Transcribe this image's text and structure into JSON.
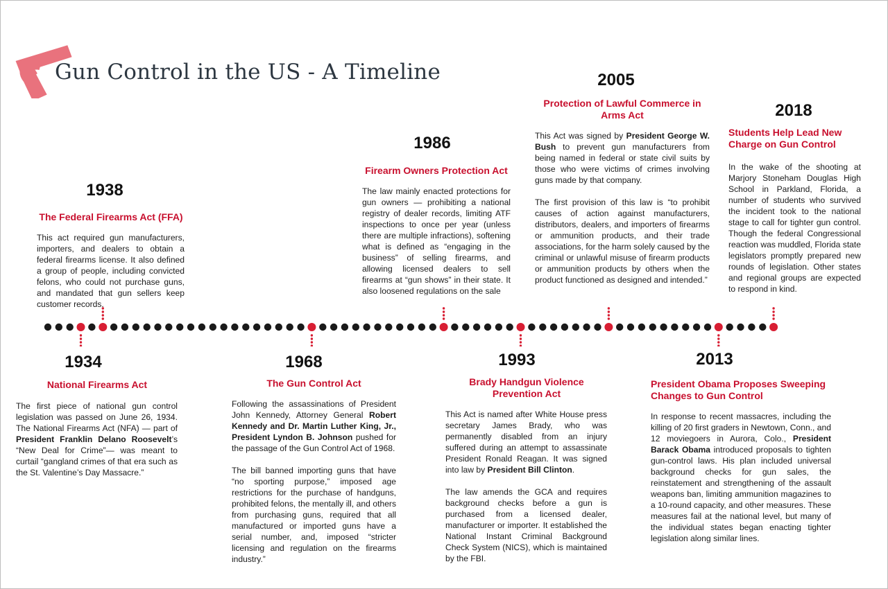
{
  "title": "Gun Control in the US - A Timeline",
  "icons": {
    "logo": "pistol-icon",
    "logo_color": "#e9727d"
  },
  "colors": {
    "accent": "#c8102e",
    "dot": "#1a1a1a",
    "marker": "#d81e33"
  },
  "events": [
    {
      "year": "1934",
      "heading": "National Firearms Act",
      "paragraphs": [
        [
          {
            "t": "The first piece of national gun control legislation was passed on June 26, 1934. The National Firearms Act (NFA) — part of "
          },
          {
            "t": "President Franklin Delano Roosevelt",
            "b": true
          },
          {
            "t": "’s “New Deal for Crime”— was meant to curtail “gangland crimes of that era such as the St. Valentine’s Day Massacre.”"
          }
        ]
      ]
    },
    {
      "year": "1938",
      "heading": "The Federal Firearms Act (FFA)",
      "paragraphs": [
        [
          {
            "t": "This act required gun manufacturers, importers, and dealers to obtain a federal firearms license. It also defined a group of people, including convicted felons, who could not purchase guns, and mandated that gun sellers keep customer records."
          }
        ]
      ]
    },
    {
      "year": "1968",
      "heading": "The Gun Control Act",
      "paragraphs": [
        [
          {
            "t": "Following the assassinations of President John Kennedy, Attorney General "
          },
          {
            "t": "Robert Kennedy and Dr. Martin Luther King, Jr., President Lyndon B. Johnson",
            "b": true
          },
          {
            "t": " pushed for the passage of the Gun Control Act of 1968."
          }
        ],
        [
          {
            "t": "The bill banned importing guns that have “no sporting purpose,” imposed age restrictions for the purchase of handguns, prohibited felons, the mentally ill, and others from purchasing guns, required that all manufactured or imported guns have a serial number, and, imposed “stricter licensing and regulation on the firearms industry.”"
          }
        ]
      ]
    },
    {
      "year": "1986",
      "heading": "Firearm Owners Protection Act",
      "paragraphs": [
        [
          {
            "t": "The law mainly enacted protections for gun owners — prohibiting a national registry of dealer records, limiting ATF inspections to once per year (unless there are multiple infractions), softening what is defined as “engaging in the business” of selling firearms, and allowing licensed dealers to sell firearms at “gun shows” in their state. It also loosened regulations on the sale"
          }
        ]
      ]
    },
    {
      "year": "1993",
      "heading": "Brady Handgun Violence Prevention Act",
      "paragraphs": [
        [
          {
            "t": "This Act is named after White House press secretary James Brady, who was permanently disabled from an injury suffered during an attempt to assassinate President Ronald Reagan. It was signed into law by "
          },
          {
            "t": "President Bill Clinton",
            "b": true
          },
          {
            "t": "."
          }
        ],
        [
          {
            "t": "The law amends the GCA and requires background checks before a gun is purchased from a licensed dealer, manufacturer or importer. It established the National Instant Criminal Background Check System (NICS), which is maintained by the FBI."
          }
        ]
      ]
    },
    {
      "year": "2005",
      "heading": "Protection of Lawful Commerce in Arms Act",
      "paragraphs": [
        [
          {
            "t": "This Act was signed by "
          },
          {
            "t": "President George W. Bush",
            "b": true
          },
          {
            "t": " to prevent gun manufacturers from being named in federal or state civil suits by those who were victims of crimes involving guns made by that company."
          }
        ],
        [
          {
            "t": "The first provision of this law is “to prohibit causes of action against manufacturers, distributors, dealers, and importers of firearms or ammunition products, and their trade associations, for the harm solely caused by the criminal or unlawful misuse of firearm products or ammunition products by others when the product functioned as designed and intended.”"
          }
        ]
      ]
    },
    {
      "year": "2013",
      "heading": "President Obama Proposes Sweeping Changes to Gun Control",
      "paragraphs": [
        [
          {
            "t": "In response to recent massacres, including the killing of 20 first graders in Newtown, Conn., and 12 moviegoers in Aurora, Colo., "
          },
          {
            "t": "President Barack Obama",
            "b": true
          },
          {
            "t": " introduced proposals to tighten gun-control laws. His plan included universal background checks for gun sales, the reinstatement and strengthening of the assault weapons ban, limiting ammunition magazines to a 10-round capacity, and other measures. These measures fail at the national level, but many of the individual states began enacting tighter legislation along similar lines."
          }
        ]
      ]
    },
    {
      "year": "2018",
      "heading": "Students Help Lead New Charge on Gun Control",
      "paragraphs": [
        [
          {
            "t": "In the wake of the shooting at Marjory Stoneham Douglas High School in Parkland, Florida, a number of students who survived the incident took to the national stage to call for tighter gun control. Though the federal Congressional reaction was muddled, Florida state legislators promptly prepared new rounds of legislation. Other states and regional groups are expected to respond in kind."
          }
        ]
      ]
    }
  ]
}
